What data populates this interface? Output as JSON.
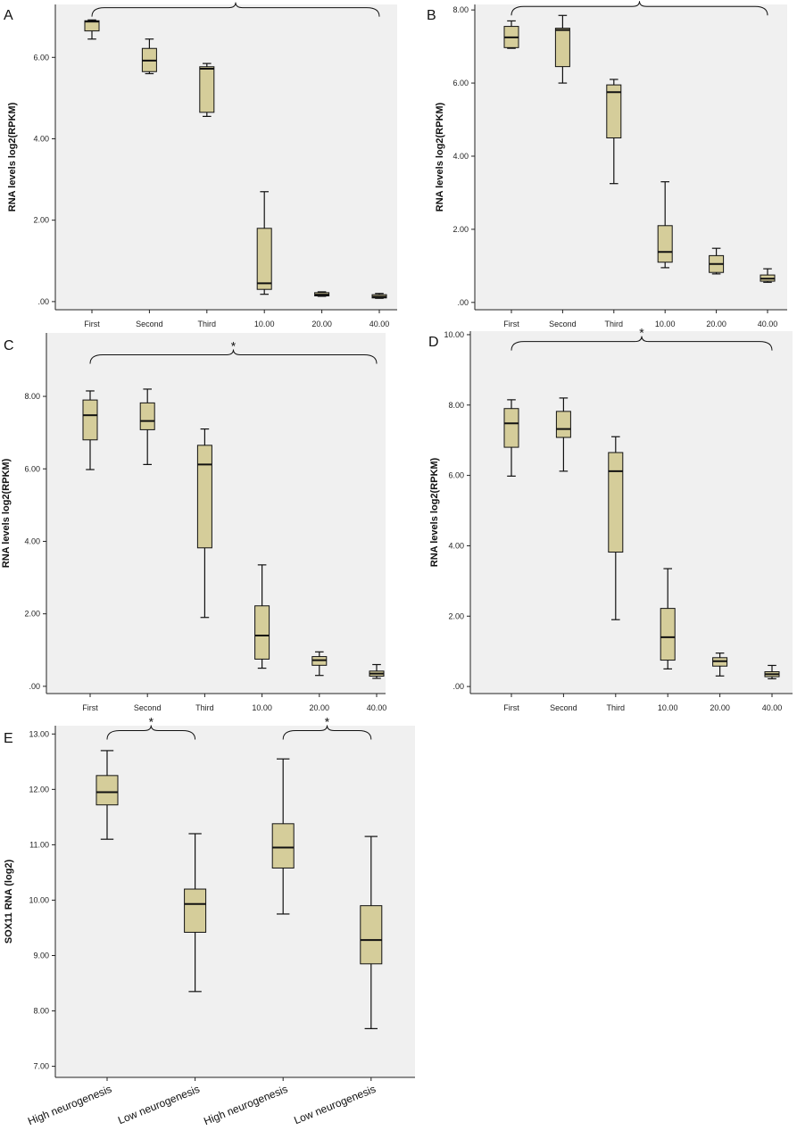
{
  "chart_data": [
    {
      "panel": "A",
      "type": "box",
      "xlabel": "",
      "ylabel": "RNA levels log2(RPKM)",
      "ylim": [
        -0.2,
        7.3
      ],
      "yticks": [
        0,
        2,
        4,
        6
      ],
      "ytick_labels": [
        ".00",
        "2.00",
        "4.00",
        "6.00"
      ],
      "categories": [
        "First",
        "Second",
        "Third",
        "10.00",
        "20.00",
        "40.00"
      ],
      "boxes": [
        {
          "min": 6.45,
          "q1": 6.65,
          "median": 6.88,
          "q3": 6.9,
          "max": 6.92
        },
        {
          "min": 5.6,
          "q1": 5.65,
          "median": 5.92,
          "q3": 6.22,
          "max": 6.45
        },
        {
          "min": 4.55,
          "q1": 4.65,
          "median": 5.72,
          "q3": 5.77,
          "max": 5.85
        },
        {
          "min": 0.18,
          "q1": 0.3,
          "median": 0.45,
          "q3": 1.8,
          "max": 2.7
        },
        {
          "min": 0.13,
          "q1": 0.14,
          "median": 0.17,
          "q3": 0.22,
          "max": 0.24
        },
        {
          "min": 0.08,
          "q1": 0.09,
          "median": 0.12,
          "q3": 0.17,
          "max": 0.2
        }
      ],
      "grid": false,
      "significance": {
        "label": "*",
        "from": 0,
        "to": 5,
        "y": 7.0
      }
    },
    {
      "panel": "B",
      "type": "box",
      "xlabel": "",
      "ylabel": "RNA levels log2(RPKM)",
      "ylim": [
        -0.2,
        8.15
      ],
      "yticks": [
        0,
        2,
        4,
        6,
        8
      ],
      "ytick_labels": [
        ".00",
        "2.00",
        "4.00",
        "6.00",
        "8.00"
      ],
      "categories": [
        "First",
        "Second",
        "Third",
        "10.00",
        "20.00",
        "40.00"
      ],
      "boxes": [
        {
          "min": 6.95,
          "q1": 6.97,
          "median": 7.25,
          "q3": 7.55,
          "max": 7.7
        },
        {
          "min": 6.0,
          "q1": 6.45,
          "median": 7.45,
          "q3": 7.5,
          "max": 7.85
        },
        {
          "min": 3.25,
          "q1": 4.5,
          "median": 5.75,
          "q3": 5.95,
          "max": 6.1
        },
        {
          "min": 0.95,
          "q1": 1.1,
          "median": 1.38,
          "q3": 2.1,
          "max": 3.3
        },
        {
          "min": 0.78,
          "q1": 0.82,
          "median": 1.05,
          "q3": 1.28,
          "max": 1.48
        },
        {
          "min": 0.55,
          "q1": 0.58,
          "median": 0.65,
          "q3": 0.75,
          "max": 0.92
        }
      ],
      "grid": false,
      "significance": {
        "label": "*",
        "from": 0,
        "to": 5,
        "y": 7.85
      }
    },
    {
      "panel": "C",
      "type": "box",
      "xlabel": "",
      "ylabel": "RNA levels log2(RPKM)",
      "ylim": [
        -0.2,
        9.75
      ],
      "yticks": [
        0,
        2,
        4,
        6,
        8
      ],
      "ytick_labels": [
        ".00",
        "2.00",
        "4.00",
        "6.00",
        "8.00"
      ],
      "categories": [
        "First",
        "Second",
        "Third",
        "10.00",
        "20.00",
        "40.00"
      ],
      "boxes": [
        {
          "min": 5.98,
          "q1": 6.8,
          "median": 7.48,
          "q3": 7.9,
          "max": 8.15
        },
        {
          "min": 6.12,
          "q1": 7.08,
          "median": 7.32,
          "q3": 7.82,
          "max": 8.2
        },
        {
          "min": 1.9,
          "q1": 3.82,
          "median": 6.12,
          "q3": 6.65,
          "max": 7.1
        },
        {
          "min": 0.5,
          "q1": 0.75,
          "median": 1.4,
          "q3": 2.22,
          "max": 3.35
        },
        {
          "min": 0.3,
          "q1": 0.58,
          "median": 0.72,
          "q3": 0.82,
          "max": 0.95
        },
        {
          "min": 0.22,
          "q1": 0.28,
          "median": 0.35,
          "q3": 0.42,
          "max": 0.6
        }
      ],
      "grid": false,
      "significance": {
        "label": "*",
        "from": 0,
        "to": 5,
        "y": 8.9
      }
    },
    {
      "panel": "D",
      "type": "box",
      "xlabel": "",
      "ylabel": "RNA levels log2(RPKM)",
      "ylim": [
        -0.2,
        10.1
      ],
      "yticks": [
        0,
        2,
        4,
        6,
        8,
        10
      ],
      "ytick_labels": [
        ".00",
        "2.00",
        "4.00",
        "6.00",
        "8.00",
        "10.00"
      ],
      "categories": [
        "First",
        "Second",
        "Third",
        "10.00",
        "20.00",
        "40.00"
      ],
      "boxes": [
        {
          "min": 5.98,
          "q1": 6.8,
          "median": 7.48,
          "q3": 7.9,
          "max": 8.15
        },
        {
          "min": 6.12,
          "q1": 7.08,
          "median": 7.32,
          "q3": 7.82,
          "max": 8.2
        },
        {
          "min": 1.9,
          "q1": 3.82,
          "median": 6.12,
          "q3": 6.65,
          "max": 7.1
        },
        {
          "min": 0.5,
          "q1": 0.75,
          "median": 1.4,
          "q3": 2.22,
          "max": 3.35
        },
        {
          "min": 0.3,
          "q1": 0.58,
          "median": 0.72,
          "q3": 0.82,
          "max": 0.95
        },
        {
          "min": 0.22,
          "q1": 0.28,
          "median": 0.35,
          "q3": 0.42,
          "max": 0.6
        }
      ],
      "grid": false,
      "significance": {
        "label": "*",
        "from": 0,
        "to": 5,
        "y": 9.55
      }
    },
    {
      "panel": "E",
      "type": "box",
      "xlabel": "",
      "ylabel": "SOX11 RNA (log2)",
      "ylim": [
        6.8,
        13.15
      ],
      "yticks": [
        7,
        8,
        9,
        10,
        11,
        12,
        13
      ],
      "ytick_labels": [
        "7.00",
        "8.00",
        "9.00",
        "10.00",
        "11.00",
        "12.00",
        "13.00"
      ],
      "categories": [
        "High neurogenesis",
        "Low neurogenesis",
        "High neurogenesis",
        "Low neurogenesis"
      ],
      "boxes": [
        {
          "min": 11.1,
          "q1": 11.72,
          "median": 11.95,
          "q3": 12.25,
          "max": 12.7
        },
        {
          "min": 8.35,
          "q1": 9.42,
          "median": 9.93,
          "q3": 10.2,
          "max": 11.2
        },
        {
          "min": 9.75,
          "q1": 10.58,
          "median": 10.95,
          "q3": 11.38,
          "max": 12.55
        },
        {
          "min": 7.68,
          "q1": 8.85,
          "median": 9.28,
          "q3": 9.9,
          "max": 11.15
        }
      ],
      "grid": false,
      "significance": [
        {
          "label": "*",
          "from": 0,
          "to": 1,
          "y": 12.9
        },
        {
          "label": "*",
          "from": 2,
          "to": 3,
          "y": 12.9
        }
      ]
    }
  ],
  "colors": {
    "box_fill": "#d5cd9a",
    "plot_bg": "#f0f0f0",
    "stroke": "#111111"
  }
}
